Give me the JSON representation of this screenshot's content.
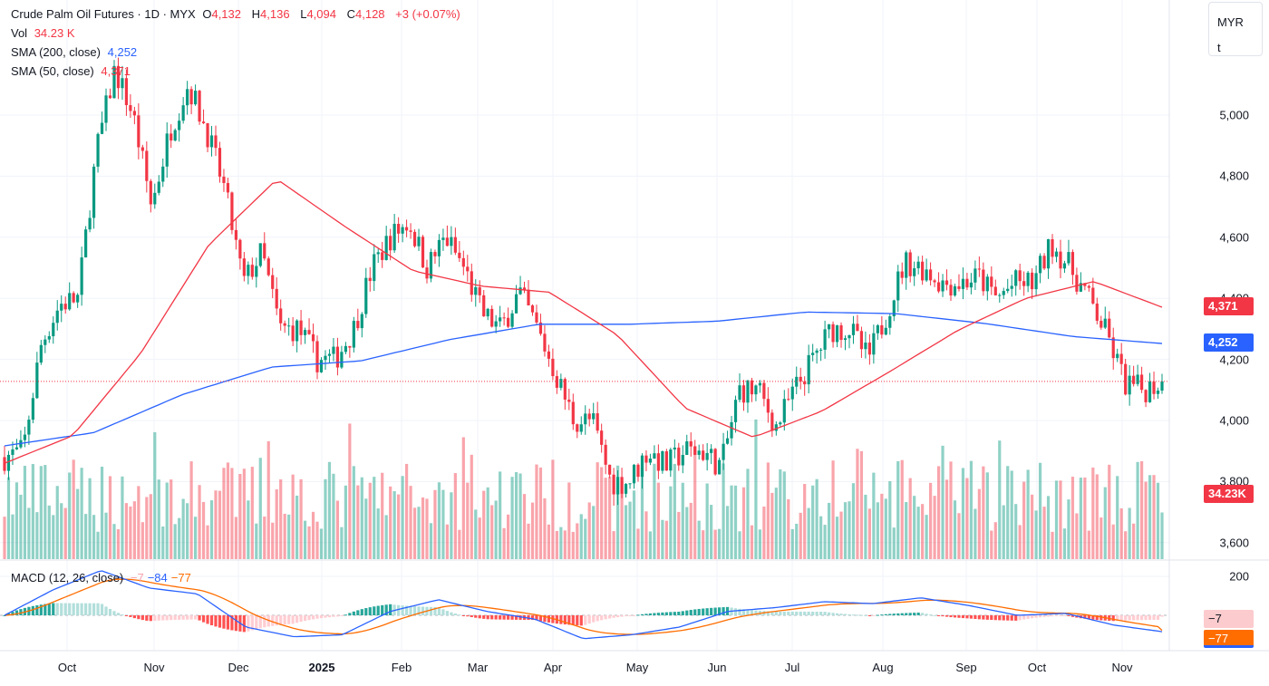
{
  "header": {
    "symbol": "Crude Palm Oil Futures · 1D · MYX",
    "open_label": "O",
    "open": "4,132",
    "high_label": "H",
    "high": "4,136",
    "low_label": "L",
    "low": "4,094",
    "close_label": "C",
    "close": "4,128",
    "change": "+3 (+0.07%)"
  },
  "volume_legend": {
    "label": "Vol",
    "value": "34.23 K"
  },
  "sma200_legend": {
    "label": "SMA (200, close)",
    "value": "4,252"
  },
  "sma50_legend": {
    "label": "SMA (50, close)",
    "value": "4,371"
  },
  "macd_legend": {
    "label": "MACD (12, 26, close)",
    "hist": "−7",
    "macd": "−84",
    "signal": "−77"
  },
  "currency": {
    "line1": "MYR",
    "line2": "t"
  },
  "price_tags": {
    "sma50": "4,371",
    "sma200": "4,252",
    "volume": "34.23K",
    "macd_hist": "−7",
    "macd_signal": "−77"
  },
  "colors": {
    "up": "#089981",
    "down": "#f23645",
    "sma200": "#2962ff",
    "sma50": "#f23645",
    "macd": "#2962ff",
    "signal": "#ff6d00"
  },
  "chart_data": {
    "type": "candlestick",
    "title": "Crude Palm Oil Futures · 1D · MYX",
    "price_axis": {
      "ticks": [
        "5,000",
        "4,800",
        "4,600",
        "4,400",
        "4,200",
        "4,000",
        "3,800",
        "3,600"
      ],
      "tick_values": [
        5000,
        4800,
        4600,
        4400,
        4200,
        4000,
        3800,
        3600
      ],
      "range": [
        3560,
        5230
      ]
    },
    "macd_axis": {
      "ticks": [
        "200"
      ],
      "tick_values": [
        200
      ]
    },
    "time_axis": {
      "ticks": [
        "Oct",
        "Nov",
        "Dec",
        "2025",
        "Feb",
        "Mar",
        "Apr",
        "May",
        "Jun",
        "Jul",
        "Aug",
        "Sep",
        "Oct",
        "Nov"
      ]
    },
    "close_path": [
      3880,
      3900,
      4250,
      4380,
      4400,
      4880,
      5150,
      5000,
      4700,
      4950,
      5100,
      4950,
      4750,
      4450,
      4550,
      4300,
      4300,
      4200,
      4200,
      4300,
      4500,
      4600,
      4650,
      4500,
      4600,
      4500,
      4350,
      4300,
      4420,
      4300,
      4150,
      4000,
      4000,
      3800,
      3800,
      3900,
      3850,
      3900,
      3900,
      3850,
      4100,
      4100,
      3980,
      4100,
      4200,
      4300,
      4300,
      4200,
      4350,
      4520,
      4500,
      4450,
      4450,
      4470,
      4400,
      4450,
      4450,
      4580,
      4500,
      4400,
      4280,
      4120,
      4100,
      4128
    ],
    "sma50_path": [
      3860,
      3950,
      4220,
      4575,
      4790,
      4635,
      4490,
      4440,
      4420,
      4280,
      4040,
      3945,
      4030,
      4160,
      4295,
      4400,
      4455,
      4371
    ],
    "sma200_path": [
      3917,
      3960,
      4085,
      4175,
      4195,
      4265,
      4315,
      4315,
      4325,
      4355,
      4350,
      4318,
      4275,
      4252
    ],
    "macd_path": [
      0,
      130,
      230,
      140,
      110,
      -60,
      -110,
      -100,
      20,
      80,
      20,
      -20,
      -120,
      -100,
      -60,
      20,
      40,
      70,
      60,
      90,
      50,
      0,
      10,
      -50,
      -84
    ],
    "last": {
      "close": 4128,
      "sma50": 4371,
      "sma200": 4252,
      "macd": -84,
      "signal": -77,
      "hist": -7,
      "volume_k": 34.23
    }
  }
}
